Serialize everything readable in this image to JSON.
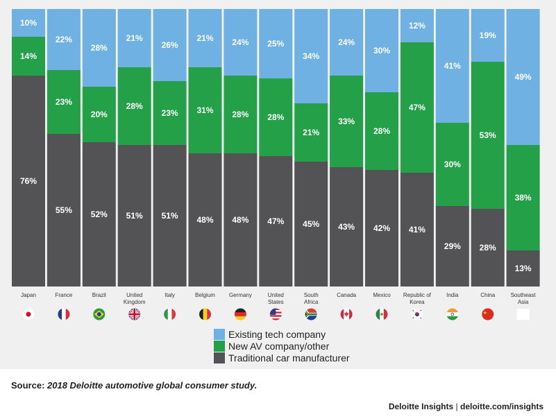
{
  "chart_data": {
    "type": "bar",
    "stacked": true,
    "categories": [
      "Japan",
      "France",
      "Brazil",
      "United Kingdom",
      "Italy",
      "Belgium",
      "Germany",
      "United States",
      "South Africa",
      "Canada",
      "Mexico",
      "Republic of Korea",
      "India",
      "China",
      "Southeast Asia"
    ],
    "category_lines": [
      [
        "Japan"
      ],
      [
        "France"
      ],
      [
        "Brazil"
      ],
      [
        "United",
        "Kingdom"
      ],
      [
        "Italy"
      ],
      [
        "Belgium"
      ],
      [
        "Germany"
      ],
      [
        "United",
        "States"
      ],
      [
        "South",
        "Africa"
      ],
      [
        "Canada"
      ],
      [
        "Mexico"
      ],
      [
        "Republic of",
        "Korea"
      ],
      [
        "India"
      ],
      [
        "China"
      ],
      [
        "Southeast",
        "Asia"
      ]
    ],
    "series": [
      {
        "name": "Traditional car manufacturer",
        "color": "#535355",
        "values": [
          76,
          55,
          52,
          51,
          51,
          48,
          48,
          47,
          45,
          43,
          42,
          41,
          29,
          28,
          13
        ]
      },
      {
        "name": "New AV company/other",
        "color": "#24a148",
        "values": [
          14,
          23,
          20,
          28,
          23,
          31,
          28,
          28,
          21,
          33,
          28,
          47,
          30,
          53,
          38
        ]
      },
      {
        "name": "Existing tech company",
        "color": "#6fb1e2",
        "values": [
          10,
          22,
          28,
          21,
          26,
          21,
          24,
          25,
          34,
          24,
          30,
          12,
          41,
          19,
          49
        ]
      }
    ],
    "value_suffix": "%",
    "ylim": [
      0,
      100
    ],
    "grid": false
  },
  "flags": [
    "japan-flag-icon",
    "france-flag-icon",
    "brazil-flag-icon",
    "united-kingdom-flag-icon",
    "italy-flag-icon",
    "belgium-flag-icon",
    "germany-flag-icon",
    "united-states-flag-icon",
    "south-africa-flag-icon",
    "canada-flag-icon",
    "mexico-flag-icon",
    "south-korea-flag-icon",
    "india-flag-icon",
    "china-flag-icon",
    "southeast-asia-flag-placeholder"
  ],
  "legend": {
    "items": [
      {
        "label": "Existing tech company",
        "color": "#6fb1e2"
      },
      {
        "label": "New AV company/other",
        "color": "#24a148"
      },
      {
        "label": "Traditional car manufacturer",
        "color": "#535355"
      }
    ]
  },
  "source": {
    "prefix": "Source: ",
    "text": "2018 Deloitte automotive global consumer study."
  },
  "footer": {
    "brand": "Deloitte Insights",
    "separator": " | ",
    "site": "deloitte.com/insights"
  }
}
